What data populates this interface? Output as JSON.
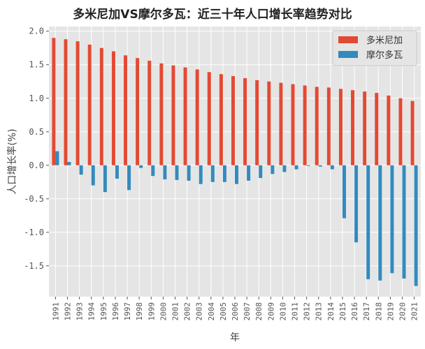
{
  "chart_data": {
    "type": "bar",
    "title": "多米尼加VS摩尔多瓦：近三十年人口增长率趋势对比",
    "xlabel": "年",
    "ylabel": "人口增长率(%)",
    "ylim": [
      -1.96,
      2.07
    ],
    "yticks": [
      2.0,
      1.5,
      1.0,
      0.5,
      0.0,
      -0.5,
      -1.0,
      -1.5
    ],
    "ytick_labels": [
      "2.0",
      "1.5",
      "1.0",
      "0.5",
      "0.0",
      "-0.5",
      "-1.0",
      "-1.5"
    ],
    "grid": true,
    "legend_position": "top-right",
    "categories": [
      "1991",
      "1992",
      "1993",
      "1994",
      "1995",
      "1996",
      "1997",
      "1998",
      "1999",
      "2000",
      "2001",
      "2002",
      "2003",
      "2004",
      "2005",
      "2006",
      "2007",
      "2008",
      "2009",
      "2010",
      "2011",
      "2012",
      "2013",
      "2014",
      "2015",
      "2016",
      "2017",
      "2018",
      "2019",
      "2020",
      "2021"
    ],
    "series": [
      {
        "name": "多米尼加",
        "color": "#e24a33",
        "values": [
          1.9,
          1.88,
          1.85,
          1.8,
          1.75,
          1.7,
          1.64,
          1.6,
          1.56,
          1.52,
          1.49,
          1.46,
          1.43,
          1.39,
          1.36,
          1.33,
          1.3,
          1.27,
          1.25,
          1.23,
          1.21,
          1.19,
          1.17,
          1.16,
          1.14,
          1.12,
          1.1,
          1.08,
          1.04,
          1.0,
          0.96
        ]
      },
      {
        "name": "摩尔多瓦",
        "color": "#348abd",
        "values": [
          0.21,
          0.05,
          -0.14,
          -0.3,
          -0.4,
          -0.2,
          -0.37,
          -0.04,
          -0.16,
          -0.21,
          -0.22,
          -0.23,
          -0.28,
          -0.25,
          -0.25,
          -0.28,
          -0.23,
          -0.19,
          -0.13,
          -0.1,
          -0.06,
          -0.01,
          -0.02,
          -0.06,
          -0.79,
          -1.15,
          -1.7,
          -1.72,
          -1.61,
          -1.69,
          -1.8
        ]
      }
    ]
  }
}
